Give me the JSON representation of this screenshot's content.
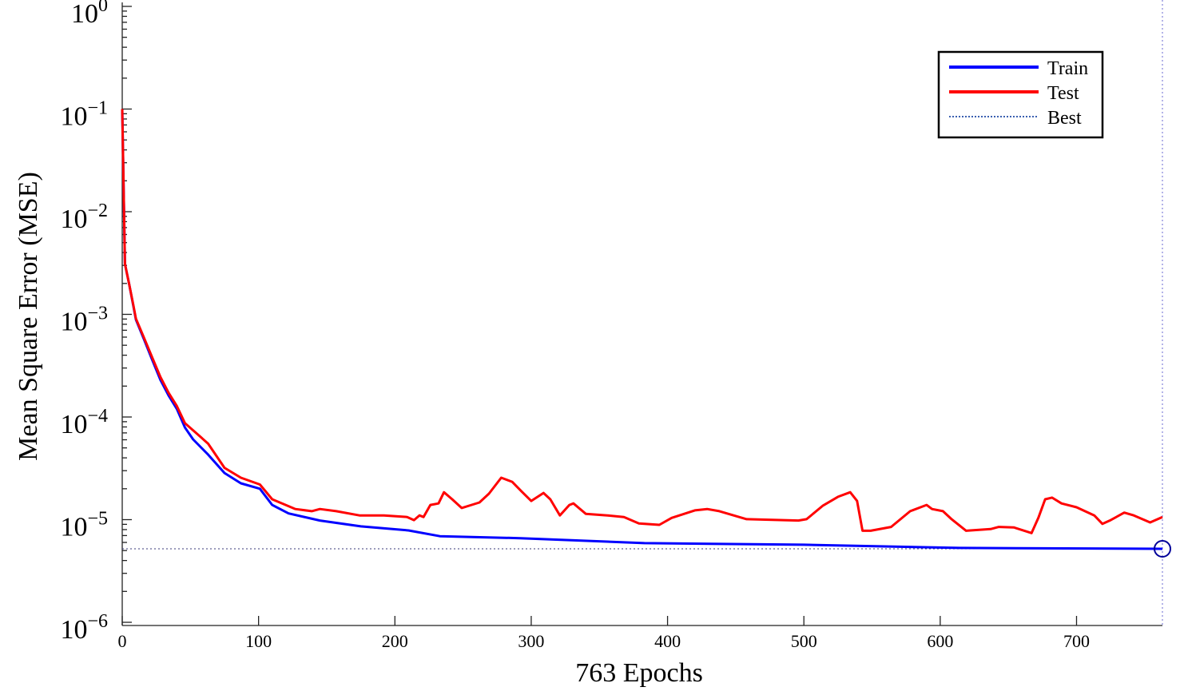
{
  "chart_data": {
    "type": "line",
    "title": "",
    "xlabel": "763 Epochs",
    "ylabel": "Mean Square Error (MSE)",
    "xlim": [
      0,
      763
    ],
    "ylim": [
      1e-06,
      1
    ],
    "yscale": "log",
    "grid": false,
    "legend_position": "top-right",
    "x_ticks": [
      "0",
      "100",
      "200",
      "300",
      "400",
      "500",
      "600",
      "700"
    ],
    "y_ticks": [
      {
        "base": "10",
        "exp": "0"
      },
      {
        "base": "10",
        "exp": "−1"
      },
      {
        "base": "10",
        "exp": "−2"
      },
      {
        "base": "10",
        "exp": "−3"
      },
      {
        "base": "10",
        "exp": "−4"
      },
      {
        "base": "10",
        "exp": "−5"
      },
      {
        "base": "10",
        "exp": "−6"
      }
    ],
    "series": [
      {
        "name": "Train",
        "color": "#0000ff",
        "x": [
          0,
          2,
          5,
          8,
          10,
          16,
          22,
          28,
          34,
          40,
          46,
          52,
          63,
          75,
          87,
          101,
          110,
          122,
          145,
          175,
          210,
          233,
          292,
          383,
          500,
          614,
          763
        ],
        "y": [
          0.1,
          0.0031,
          0.002,
          0.00123,
          0.00089,
          0.00057,
          0.00036,
          0.00023,
          0.000162,
          0.00012,
          7.9e-05,
          6.05e-05,
          4.3e-05,
          2.85e-05,
          2.26e-05,
          2e-05,
          1.39e-05,
          1.15e-05,
          9.8e-06,
          8.6e-06,
          7.85e-06,
          6.9e-06,
          6.6e-06,
          5.9e-06,
          5.7e-06,
          5.3e-06,
          5.2e-06
        ]
      },
      {
        "name": "Test",
        "color": "#ff0000",
        "x": [
          0,
          2,
          5,
          8,
          10,
          16,
          22,
          28,
          34,
          40,
          46,
          58,
          63,
          75,
          87,
          101,
          110,
          127,
          139,
          145,
          157,
          174,
          192,
          209,
          214,
          218,
          221,
          226,
          232,
          236,
          242,
          249,
          262,
          269,
          278,
          286,
          293,
          300,
          309,
          314,
          321,
          328,
          331,
          340,
          356,
          368,
          379,
          394,
          403,
          420,
          429,
          438,
          458,
          496,
          502,
          514,
          525,
          534,
          539,
          543,
          549,
          564,
          578,
          590,
          594,
          602,
          608,
          619,
          637,
          643,
          654,
          667,
          672,
          677,
          682,
          689,
          700,
          713,
          719,
          725,
          735,
          742,
          754,
          763
        ],
        "y": [
          0.1,
          0.0031,
          0.002,
          0.00125,
          0.00091,
          0.00059,
          0.00038,
          0.000245,
          0.000172,
          0.000128,
          8.7e-05,
          6.3e-05,
          5.5e-05,
          3.2e-05,
          2.56e-05,
          2.2e-05,
          1.58e-05,
          1.27e-05,
          1.21e-05,
          1.27e-05,
          1.21e-05,
          1.1e-05,
          1.1e-05,
          1.06e-05,
          9.9e-06,
          1.1e-05,
          1.06e-05,
          1.39e-05,
          1.44e-05,
          1.85e-05,
          1.58e-05,
          1.3e-05,
          1.47e-05,
          1.79e-05,
          2.56e-05,
          2.34e-05,
          1.88e-05,
          1.52e-05,
          1.82e-05,
          1.58e-05,
          1.1e-05,
          1.39e-05,
          1.44e-05,
          1.14e-05,
          1.1e-05,
          1.06e-05,
          9.2e-06,
          8.9e-06,
          1.04e-05,
          1.23e-05,
          1.27e-05,
          1.21e-05,
          1.01e-05,
          9.8e-06,
          1.01e-05,
          1.37e-05,
          1.67e-05,
          1.85e-05,
          1.52e-05,
          7.8e-06,
          7.8e-06,
          8.5e-06,
          1.21e-05,
          1.39e-05,
          1.27e-05,
          1.21e-05,
          1.02e-05,
          7.8e-06,
          8.1e-06,
          8.5e-06,
          8.4e-06,
          7.4e-06,
          1.04e-05,
          1.58e-05,
          1.64e-05,
          1.44e-05,
          1.32e-05,
          1.1e-05,
          9.1e-06,
          9.9e-06,
          1.17e-05,
          1.1e-05,
          9.4e-06,
          1.06e-05
        ]
      },
      {
        "name": "Best",
        "color": "#3a5fb0",
        "style": "dotted",
        "best_epoch": 763,
        "best_value": 5.2e-06
      }
    ]
  }
}
